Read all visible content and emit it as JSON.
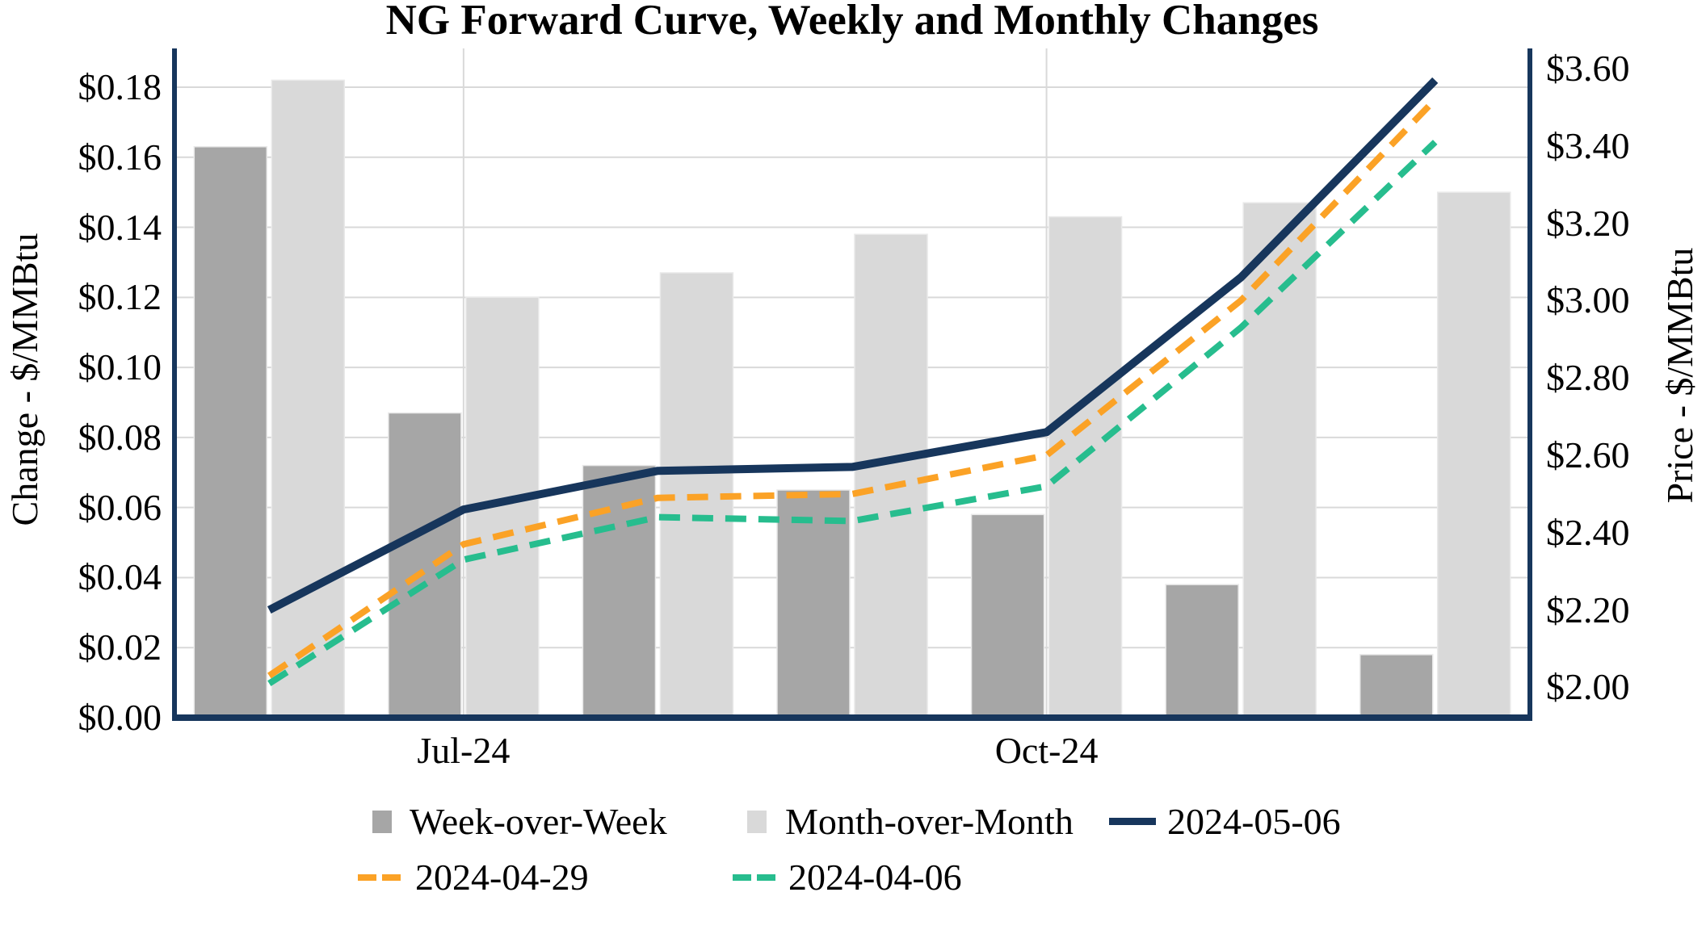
{
  "title": "NG Forward Curve, Weekly and Monthly Changes",
  "left_axis": {
    "title": "Change - $/MMBtu",
    "tick_labels": [
      "$0.00",
      "$0.02",
      "$0.04",
      "$0.06",
      "$0.08",
      "$0.10",
      "$0.12",
      "$0.14",
      "$0.16",
      "$0.18"
    ]
  },
  "right_axis": {
    "title": "Price - $/MMBtu",
    "tick_labels": [
      "$2.00",
      "$2.20",
      "$2.40",
      "$2.60",
      "$2.80",
      "$3.00",
      "$3.20",
      "$3.40",
      "$3.60"
    ]
  },
  "x_axis": {
    "visible_labels": [
      {
        "text": "Jul-24",
        "slot": 1
      },
      {
        "text": "Oct-24",
        "slot": 4
      }
    ]
  },
  "legend": {
    "row1": [
      {
        "label": "Week-over-Week",
        "swatch": "bar",
        "color": "#A6A6A6"
      },
      {
        "label": "Month-over-Month",
        "swatch": "bar",
        "color": "#D9D9D9"
      },
      {
        "label": "2024-05-06",
        "swatch": "line-solid",
        "color": "#17365C"
      }
    ],
    "row2": [
      {
        "label": "2024-04-29",
        "swatch": "line-dashed",
        "color": "#FBA226"
      },
      {
        "label": "2024-04-06",
        "swatch": "line-dashed",
        "color": "#27BD8E"
      }
    ]
  },
  "colors": {
    "frame": "#17365C",
    "gridline": "#D9D9D9",
    "wow_bar": "#A6A6A6",
    "mom_bar": "#D9D9D9",
    "line_navy": "#17365C",
    "line_orange": "#FBA226",
    "line_green": "#27BD8E",
    "background": "#FFFFFF",
    "text": "#000000"
  },
  "chart_data": {
    "type": "bar",
    "subtype": "combo-bar-line-dual-axis",
    "title": "NG Forward Curve, Weekly and Monthly Changes",
    "categories": [
      "",
      "Jul-24",
      "",
      "",
      "Oct-24",
      "",
      ""
    ],
    "bar_series": [
      {
        "name": "Week-over-Week",
        "axis": "left",
        "color": "#A6A6A6",
        "values": [
          0.163,
          0.087,
          0.072,
          0.065,
          0.058,
          0.038,
          0.018
        ]
      },
      {
        "name": "Month-over-Month",
        "axis": "left",
        "color": "#D9D9D9",
        "values": [
          0.182,
          0.12,
          0.127,
          0.138,
          0.143,
          0.147,
          0.15
        ]
      }
    ],
    "line_series": [
      {
        "name": "2024-05-06",
        "axis": "right",
        "color": "#17365C",
        "style": "solid",
        "values": [
          2.2,
          2.46,
          2.56,
          2.57,
          2.66,
          3.06,
          3.57
        ]
      },
      {
        "name": "2024-04-29",
        "axis": "right",
        "color": "#FBA226",
        "style": "dashed",
        "values": [
          2.03,
          2.37,
          2.49,
          2.5,
          2.6,
          3.0,
          3.52
        ]
      },
      {
        "name": "2024-04-06",
        "axis": "right",
        "color": "#27BD8E",
        "style": "dashed",
        "values": [
          2.01,
          2.33,
          2.44,
          2.43,
          2.52,
          2.93,
          3.41
        ]
      }
    ],
    "ylabel_left": "Change - $/MMBtu",
    "ylabel_right": "Price - $/MMBtu",
    "ylim_left": [
      0.0,
      0.18
    ],
    "ytick_step_left": 0.02,
    "ylim_right": [
      2.0,
      3.6
    ],
    "ytick_step_right": 0.2,
    "grid": {
      "horizontal": true,
      "vertical_at_labeled_categories": true
    },
    "legend_position": "bottom"
  }
}
